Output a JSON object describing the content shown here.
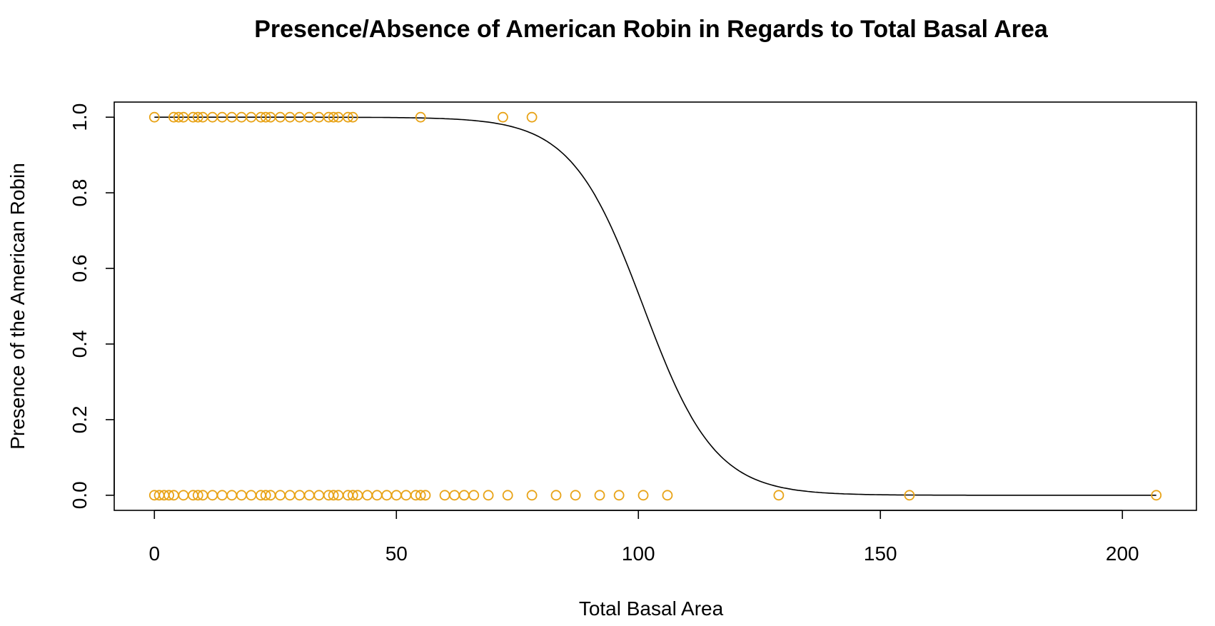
{
  "chart_data": {
    "type": "scatter",
    "title": "Presence/Absence of American Robin in Regards to Total Basal Area",
    "xlabel": "Total Basal Area",
    "ylabel": "Presence of the American Robin",
    "xlim": [
      -8.3,
      215.3
    ],
    "ylim": [
      -0.04,
      1.04
    ],
    "xticks": [
      0,
      50,
      100,
      150,
      200
    ],
    "yticks": [
      0.0,
      0.2,
      0.4,
      0.6,
      0.8,
      1.0
    ],
    "xtick_labels": [
      "0",
      "50",
      "100",
      "150",
      "200"
    ],
    "ytick_labels": [
      "0.0",
      "0.2",
      "0.4",
      "0.6",
      "0.8",
      "1.0"
    ],
    "grid": false,
    "point_color": "#E8A317",
    "line_color": "#000000",
    "series": [
      {
        "kind": "points",
        "points": [
          [
            0,
            1
          ],
          [
            4,
            1
          ],
          [
            5,
            1
          ],
          [
            6,
            1
          ],
          [
            8,
            1
          ],
          [
            9,
            1
          ],
          [
            10,
            1
          ],
          [
            12,
            1
          ],
          [
            14,
            1
          ],
          [
            16,
            1
          ],
          [
            18,
            1
          ],
          [
            20,
            1
          ],
          [
            22,
            1
          ],
          [
            23,
            1
          ],
          [
            24,
            1
          ],
          [
            26,
            1
          ],
          [
            28,
            1
          ],
          [
            30,
            1
          ],
          [
            32,
            1
          ],
          [
            34,
            1
          ],
          [
            36,
            1
          ],
          [
            37,
            1
          ],
          [
            38,
            1
          ],
          [
            40,
            1
          ],
          [
            41,
            1
          ],
          [
            55,
            1
          ],
          [
            72,
            1
          ],
          [
            78,
            1
          ],
          [
            0,
            0
          ],
          [
            1,
            0
          ],
          [
            2,
            0
          ],
          [
            3,
            0
          ],
          [
            4,
            0
          ],
          [
            6,
            0
          ],
          [
            8,
            0
          ],
          [
            9,
            0
          ],
          [
            10,
            0
          ],
          [
            12,
            0
          ],
          [
            14,
            0
          ],
          [
            16,
            0
          ],
          [
            18,
            0
          ],
          [
            20,
            0
          ],
          [
            22,
            0
          ],
          [
            23,
            0
          ],
          [
            24,
            0
          ],
          [
            26,
            0
          ],
          [
            28,
            0
          ],
          [
            30,
            0
          ],
          [
            32,
            0
          ],
          [
            34,
            0
          ],
          [
            36,
            0
          ],
          [
            37,
            0
          ],
          [
            38,
            0
          ],
          [
            40,
            0
          ],
          [
            41,
            0
          ],
          [
            42,
            0
          ],
          [
            44,
            0
          ],
          [
            46,
            0
          ],
          [
            48,
            0
          ],
          [
            50,
            0
          ],
          [
            52,
            0
          ],
          [
            54,
            0
          ],
          [
            55,
            0
          ],
          [
            56,
            0
          ],
          [
            60,
            0
          ],
          [
            62,
            0
          ],
          [
            64,
            0
          ],
          [
            66,
            0
          ],
          [
            69,
            0
          ],
          [
            73,
            0
          ],
          [
            78,
            0
          ],
          [
            83,
            0
          ],
          [
            87,
            0
          ],
          [
            92,
            0
          ],
          [
            96,
            0
          ],
          [
            101,
            0
          ],
          [
            106,
            0
          ],
          [
            129,
            0
          ],
          [
            156,
            0
          ],
          [
            207,
            0
          ]
        ]
      },
      {
        "kind": "logistic-fit",
        "x_start": 0,
        "x_end": 207,
        "midpoint": 101,
        "rate": 0.135
      }
    ]
  }
}
